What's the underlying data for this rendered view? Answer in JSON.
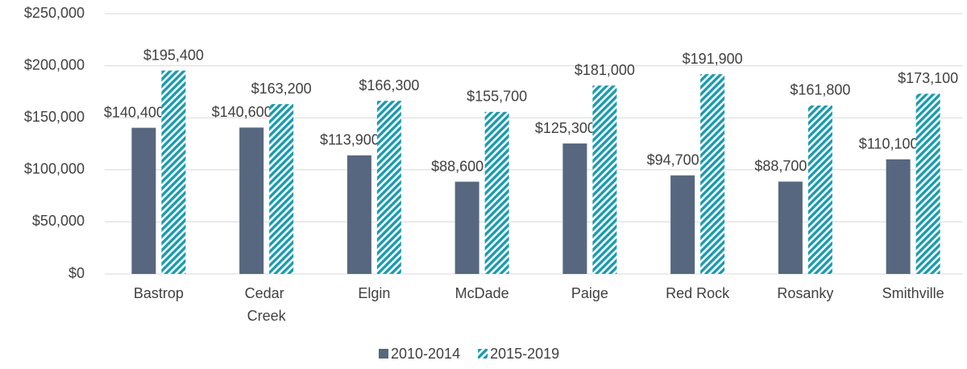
{
  "chart_data": {
    "type": "bar",
    "categories": [
      "Bastrop",
      "Cedar Creek",
      "Elgin",
      "McDade",
      "Paige",
      "Red Rock",
      "Rosanky",
      "Smithville"
    ],
    "series": [
      {
        "name": "2010-2014",
        "color": "#56677f",
        "values": [
          140400,
          140600,
          113900,
          88600,
          125300,
          94700,
          88700,
          110100
        ],
        "value_labels": [
          "$140,400",
          "$140,600",
          "$113,900",
          "$88,600",
          "$125,300",
          "$94,700",
          "$88,700",
          "$110,100"
        ]
      },
      {
        "name": "2015-2019",
        "color": "#1a9bb0",
        "values": [
          195400,
          163200,
          166300,
          155700,
          181000,
          191900,
          161800,
          173100
        ],
        "value_labels": [
          "$195,400",
          "$163,200",
          "$166,300",
          "$155,700",
          "$181,000",
          "$191,900",
          "$161,800",
          "$173,100"
        ]
      }
    ],
    "ylim": [
      0,
      250000
    ],
    "yticks": [
      {
        "value": 0,
        "label": "$0"
      },
      {
        "value": 50000,
        "label": "$50,000"
      },
      {
        "value": 100000,
        "label": "$100,000"
      },
      {
        "value": 150000,
        "label": "$150,000"
      },
      {
        "value": 200000,
        "label": "$200,000"
      },
      {
        "value": 250000,
        "label": "$250,000"
      }
    ],
    "grid": true,
    "legend": "bottom"
  }
}
